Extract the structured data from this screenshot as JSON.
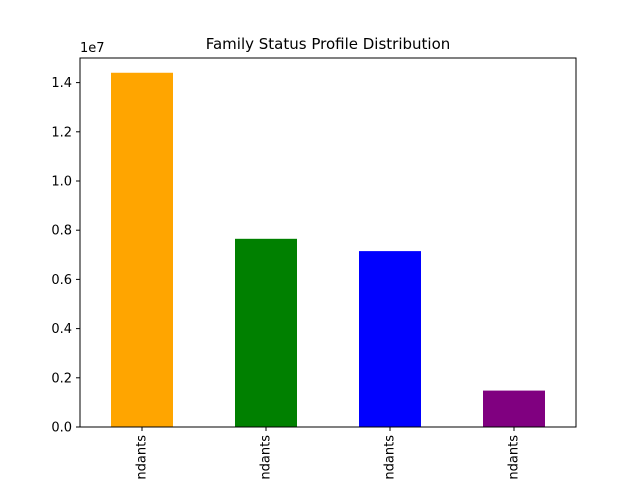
{
  "chart_data": {
    "type": "bar",
    "title": "Family Status Profile Distribution",
    "xlabel": "",
    "ylabel": "",
    "y_offset_label": "1e7",
    "categories": [
      "ndants",
      "ndants",
      "ndants",
      "ndants"
    ],
    "values": [
      14400000,
      7650000,
      7150000,
      1480000
    ],
    "colors": [
      "#ffa500",
      "#008000",
      "#0000ff",
      "#800080"
    ],
    "ylim": [
      0,
      15000000
    ],
    "ytick_values": [
      0,
      2000000,
      4000000,
      6000000,
      8000000,
      10000000,
      12000000,
      14000000
    ],
    "ytick_labels": [
      "0.0",
      "0.2",
      "0.4",
      "0.6",
      "0.8",
      "1.0",
      "1.2",
      "1.4"
    ],
    "grid": false,
    "legend": "none"
  }
}
